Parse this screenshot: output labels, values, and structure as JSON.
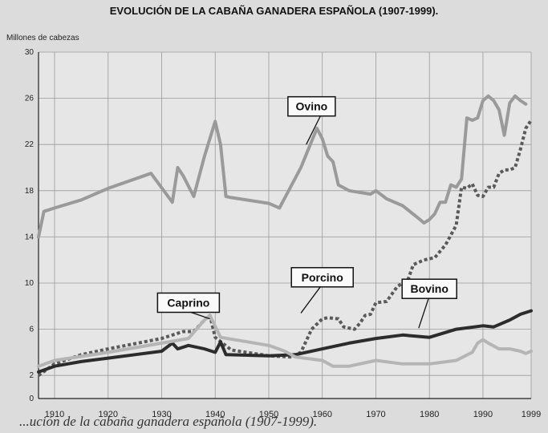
{
  "chart_data": {
    "type": "line",
    "title": "EVOLUCIÓN DE LA CABAÑA GANADERA ESPAÑOLA (1907-1999).",
    "ylabel": "Millones de cabezas",
    "xlabel": "",
    "caption": "...ución de la cabaña ganadera española (1907-1999).",
    "xlim": [
      1907,
      1999
    ],
    "ylim": [
      0,
      30
    ],
    "xticks": [
      1910,
      1920,
      1930,
      1940,
      1950,
      1960,
      1970,
      1980,
      1990,
      1999
    ],
    "yticks": [
      0,
      2,
      6,
      10,
      14,
      18,
      22,
      26,
      30
    ],
    "grid": true,
    "series": [
      {
        "name": "Ovino",
        "color": "#9a9a9a",
        "style": "solid-thick",
        "label_pos": [
          1958,
          25.3
        ],
        "points": [
          [
            1907,
            14
          ],
          [
            1908,
            16.2
          ],
          [
            1910,
            16.5
          ],
          [
            1915,
            17.2
          ],
          [
            1920,
            18.2
          ],
          [
            1928,
            19.5
          ],
          [
            1932,
            17
          ],
          [
            1933,
            20
          ],
          [
            1934,
            19.3
          ],
          [
            1936,
            17.5
          ],
          [
            1938,
            21
          ],
          [
            1940,
            24
          ],
          [
            1941,
            22
          ],
          [
            1942,
            17.5
          ],
          [
            1943,
            17.4
          ],
          [
            1950,
            16.9
          ],
          [
            1952,
            16.5
          ],
          [
            1956,
            20
          ],
          [
            1959,
            23.4
          ],
          [
            1960,
            22.5
          ],
          [
            1961,
            21
          ],
          [
            1962,
            20.5
          ],
          [
            1963,
            18.5
          ],
          [
            1965,
            18
          ],
          [
            1969,
            17.7
          ],
          [
            1970,
            18
          ],
          [
            1972,
            17.3
          ],
          [
            1975,
            16.7
          ],
          [
            1978,
            15.6
          ],
          [
            1979,
            15.2
          ],
          [
            1980,
            15.5
          ],
          [
            1981,
            16
          ],
          [
            1982,
            17
          ],
          [
            1983,
            17
          ],
          [
            1984,
            18.5
          ],
          [
            1985,
            18.3
          ],
          [
            1986,
            19
          ],
          [
            1987,
            24.3
          ],
          [
            1988,
            24.1
          ],
          [
            1989,
            24.3
          ],
          [
            1990,
            25.8
          ],
          [
            1991,
            26.2
          ],
          [
            1992,
            25.8
          ],
          [
            1993,
            25
          ],
          [
            1994,
            22.8
          ],
          [
            1995,
            25.6
          ],
          [
            1996,
            26.2
          ],
          [
            1997,
            25.8
          ],
          [
            1998,
            25.5
          ]
        ]
      },
      {
        "name": "Porcino",
        "color": "#5a5a5a",
        "style": "dotted-thick",
        "label_pos": [
          1960,
          10.5
        ],
        "points": [
          [
            1907,
            2
          ],
          [
            1910,
            3
          ],
          [
            1915,
            3.8
          ],
          [
            1920,
            4.3
          ],
          [
            1930,
            5.2
          ],
          [
            1934,
            5.8
          ],
          [
            1936,
            5.8
          ],
          [
            1938,
            6.8
          ],
          [
            1939,
            7.2
          ],
          [
            1940,
            5.3
          ],
          [
            1943,
            4.2
          ],
          [
            1950,
            3.7
          ],
          [
            1954,
            3.6
          ],
          [
            1956,
            4
          ],
          [
            1958,
            6
          ],
          [
            1960,
            6.9
          ],
          [
            1961,
            7
          ],
          [
            1963,
            6.9
          ],
          [
            1964,
            6.2
          ],
          [
            1966,
            6
          ],
          [
            1967,
            6.5
          ],
          [
            1968,
            7.2
          ],
          [
            1969,
            7.3
          ],
          [
            1970,
            8.3
          ],
          [
            1972,
            8.4
          ],
          [
            1974,
            9.7
          ],
          [
            1976,
            10.3
          ],
          [
            1977,
            11.6
          ],
          [
            1979,
            12
          ],
          [
            1981,
            12.2
          ],
          [
            1983,
            13.3
          ],
          [
            1985,
            15
          ],
          [
            1986,
            18.3
          ],
          [
            1987,
            18.2
          ],
          [
            1988,
            18.6
          ],
          [
            1989,
            17.6
          ],
          [
            1990,
            17.5
          ],
          [
            1991,
            18.3
          ],
          [
            1992,
            18.3
          ],
          [
            1993,
            19.5
          ],
          [
            1994,
            19.8
          ],
          [
            1995,
            19.8
          ],
          [
            1996,
            20
          ],
          [
            1997,
            21.6
          ],
          [
            1998,
            23.4
          ],
          [
            1999,
            24.1
          ]
        ]
      },
      {
        "name": "Bovino",
        "color": "#2c2c2c",
        "style": "solid-thick",
        "label_pos": [
          1980,
          9.5
        ],
        "points": [
          [
            1907,
            2.3
          ],
          [
            1910,
            2.8
          ],
          [
            1915,
            3.2
          ],
          [
            1920,
            3.5
          ],
          [
            1925,
            3.8
          ],
          [
            1930,
            4.1
          ],
          [
            1932,
            4.8
          ],
          [
            1933,
            4.3
          ],
          [
            1935,
            4.6
          ],
          [
            1938,
            4.3
          ],
          [
            1940,
            4
          ],
          [
            1941,
            4.9
          ],
          [
            1942,
            3.8
          ],
          [
            1950,
            3.7
          ],
          [
            1955,
            3.8
          ],
          [
            1960,
            4.3
          ],
          [
            1965,
            4.8
          ],
          [
            1970,
            5.2
          ],
          [
            1975,
            5.5
          ],
          [
            1980,
            5.3
          ],
          [
            1985,
            6
          ],
          [
            1990,
            6.3
          ],
          [
            1992,
            6.2
          ],
          [
            1995,
            6.8
          ],
          [
            1997,
            7.3
          ],
          [
            1999,
            7.6
          ]
        ]
      },
      {
        "name": "Caprino",
        "color": "#b5b5b5",
        "style": "solid-thick",
        "label_pos": [
          1935,
          8.3
        ],
        "points": [
          [
            1907,
            2.8
          ],
          [
            1910,
            3.3
          ],
          [
            1920,
            4
          ],
          [
            1930,
            4.8
          ],
          [
            1935,
            5.2
          ],
          [
            1938,
            6.8
          ],
          [
            1939,
            7.2
          ],
          [
            1941,
            5.3
          ],
          [
            1950,
            4.6
          ],
          [
            1953,
            4.1
          ],
          [
            1955,
            3.6
          ],
          [
            1960,
            3.3
          ],
          [
            1962,
            2.8
          ],
          [
            1965,
            2.8
          ],
          [
            1970,
            3.3
          ],
          [
            1975,
            3
          ],
          [
            1980,
            3
          ],
          [
            1985,
            3.3
          ],
          [
            1988,
            4
          ],
          [
            1989,
            4.8
          ],
          [
            1990,
            5.1
          ],
          [
            1991,
            4.8
          ],
          [
            1993,
            4.3
          ],
          [
            1995,
            4.3
          ],
          [
            1997,
            4.1
          ],
          [
            1998,
            3.9
          ],
          [
            1999,
            4.1
          ]
        ]
      }
    ]
  }
}
